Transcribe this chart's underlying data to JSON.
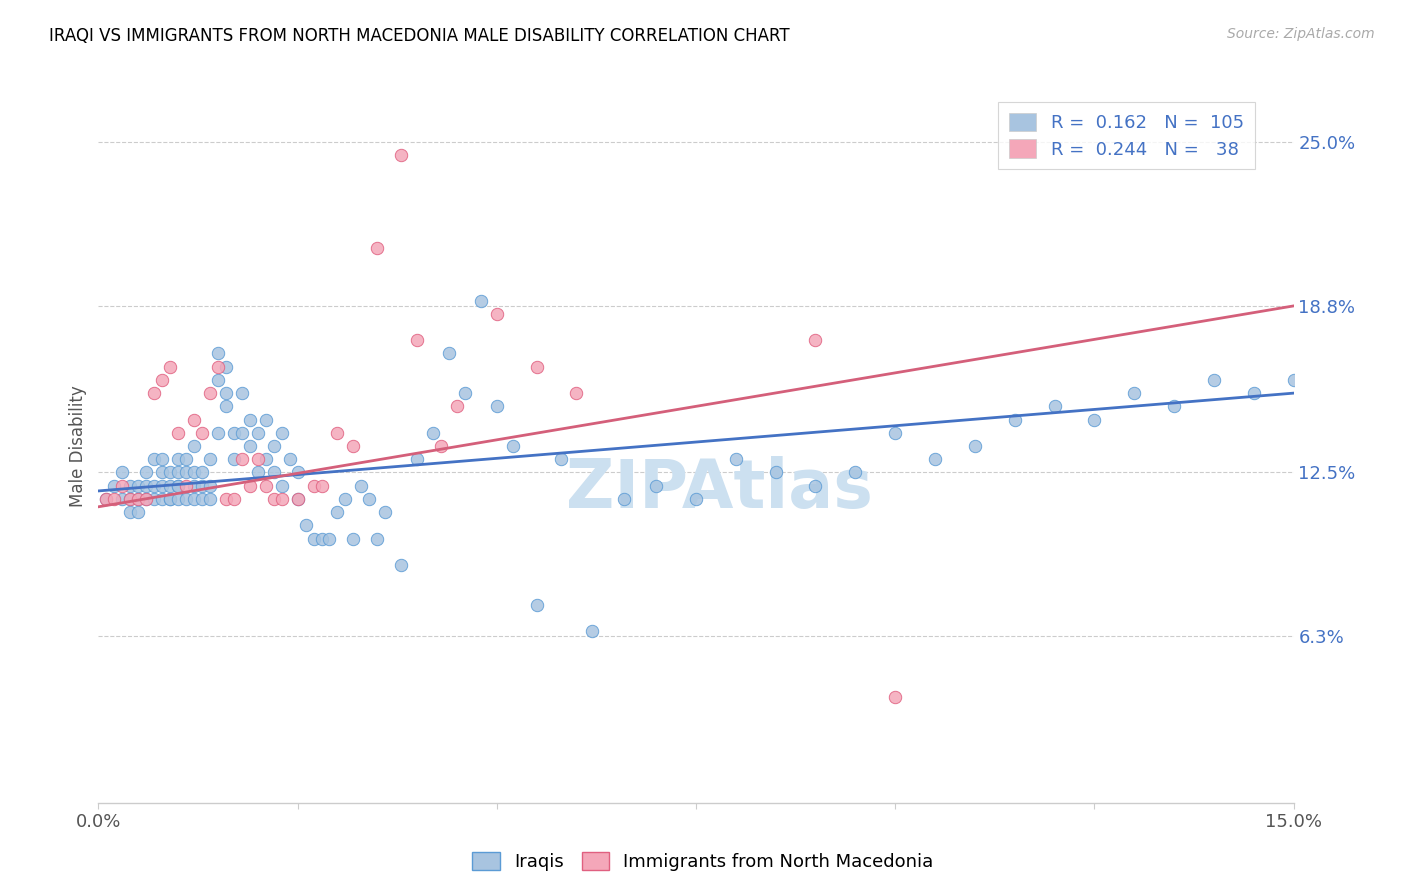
{
  "title": "IRAQI VS IMMIGRANTS FROM NORTH MACEDONIA MALE DISABILITY CORRELATION CHART",
  "source": "Source: ZipAtlas.com",
  "ylabel": "Male Disability",
  "ytick_labels": [
    "6.3%",
    "12.5%",
    "18.8%",
    "25.0%"
  ],
  "ytick_values": [
    0.063,
    0.125,
    0.188,
    0.25
  ],
  "xmin": 0.0,
  "xmax": 0.15,
  "ymin": 0.0,
  "ymax": 0.27,
  "r1": 0.162,
  "n1": 105,
  "r2": 0.244,
  "n2": 38,
  "color_iraqi": "#a8c4e0",
  "color_iraqi_edge": "#5b9bd5",
  "color_iraqi_line": "#4472c4",
  "color_nm": "#f4a7b9",
  "color_nm_edge": "#e06080",
  "color_nm_line": "#d45f7a",
  "color_right_tick": "#4472c4",
  "watermark_color": "#cce0f0",
  "blue_line_x0": 0.0,
  "blue_line_y0": 0.118,
  "blue_line_x1": 0.15,
  "blue_line_y1": 0.155,
  "pink_line_x0": 0.0,
  "pink_line_y0": 0.112,
  "pink_line_x1": 0.15,
  "pink_line_y1": 0.188,
  "iraqi_x": [
    0.001,
    0.002,
    0.003,
    0.003,
    0.004,
    0.004,
    0.004,
    0.005,
    0.005,
    0.005,
    0.006,
    0.006,
    0.006,
    0.007,
    0.007,
    0.007,
    0.008,
    0.008,
    0.008,
    0.008,
    0.009,
    0.009,
    0.009,
    0.009,
    0.01,
    0.01,
    0.01,
    0.01,
    0.01,
    0.011,
    0.011,
    0.011,
    0.012,
    0.012,
    0.012,
    0.012,
    0.013,
    0.013,
    0.013,
    0.014,
    0.014,
    0.014,
    0.015,
    0.015,
    0.015,
    0.016,
    0.016,
    0.016,
    0.017,
    0.017,
    0.018,
    0.018,
    0.019,
    0.019,
    0.02,
    0.02,
    0.021,
    0.021,
    0.022,
    0.022,
    0.023,
    0.023,
    0.024,
    0.025,
    0.025,
    0.026,
    0.027,
    0.028,
    0.029,
    0.03,
    0.031,
    0.032,
    0.033,
    0.034,
    0.035,
    0.036,
    0.038,
    0.04,
    0.042,
    0.044,
    0.046,
    0.048,
    0.05,
    0.052,
    0.055,
    0.058,
    0.062,
    0.066,
    0.07,
    0.075,
    0.08,
    0.085,
    0.09,
    0.095,
    0.1,
    0.105,
    0.11,
    0.115,
    0.12,
    0.125,
    0.13,
    0.135,
    0.14,
    0.145,
    0.15
  ],
  "iraqi_y": [
    0.115,
    0.12,
    0.115,
    0.125,
    0.12,
    0.115,
    0.11,
    0.115,
    0.12,
    0.11,
    0.12,
    0.115,
    0.125,
    0.115,
    0.12,
    0.13,
    0.12,
    0.115,
    0.125,
    0.13,
    0.115,
    0.12,
    0.125,
    0.115,
    0.12,
    0.115,
    0.125,
    0.13,
    0.12,
    0.115,
    0.125,
    0.13,
    0.12,
    0.115,
    0.125,
    0.135,
    0.12,
    0.125,
    0.115,
    0.13,
    0.12,
    0.115,
    0.14,
    0.16,
    0.17,
    0.155,
    0.15,
    0.165,
    0.14,
    0.13,
    0.155,
    0.14,
    0.145,
    0.135,
    0.14,
    0.125,
    0.13,
    0.145,
    0.125,
    0.135,
    0.14,
    0.12,
    0.13,
    0.125,
    0.115,
    0.105,
    0.1,
    0.1,
    0.1,
    0.11,
    0.115,
    0.1,
    0.12,
    0.115,
    0.1,
    0.11,
    0.09,
    0.13,
    0.14,
    0.17,
    0.155,
    0.19,
    0.15,
    0.135,
    0.075,
    0.13,
    0.065,
    0.115,
    0.12,
    0.115,
    0.13,
    0.125,
    0.12,
    0.125,
    0.14,
    0.13,
    0.135,
    0.145,
    0.15,
    0.145,
    0.155,
    0.15,
    0.16,
    0.155,
    0.16
  ],
  "nm_x": [
    0.001,
    0.002,
    0.003,
    0.004,
    0.005,
    0.006,
    0.007,
    0.008,
    0.009,
    0.01,
    0.011,
    0.012,
    0.013,
    0.014,
    0.015,
    0.016,
    0.017,
    0.018,
    0.019,
    0.02,
    0.021,
    0.022,
    0.023,
    0.025,
    0.027,
    0.028,
    0.03,
    0.032,
    0.035,
    0.038,
    0.04,
    0.043,
    0.045,
    0.05,
    0.055,
    0.06,
    0.09,
    0.1
  ],
  "nm_y": [
    0.115,
    0.115,
    0.12,
    0.115,
    0.115,
    0.115,
    0.155,
    0.16,
    0.165,
    0.14,
    0.12,
    0.145,
    0.14,
    0.155,
    0.165,
    0.115,
    0.115,
    0.13,
    0.12,
    0.13,
    0.12,
    0.115,
    0.115,
    0.115,
    0.12,
    0.12,
    0.14,
    0.135,
    0.21,
    0.245,
    0.175,
    0.135,
    0.15,
    0.185,
    0.165,
    0.155,
    0.175,
    0.04
  ]
}
